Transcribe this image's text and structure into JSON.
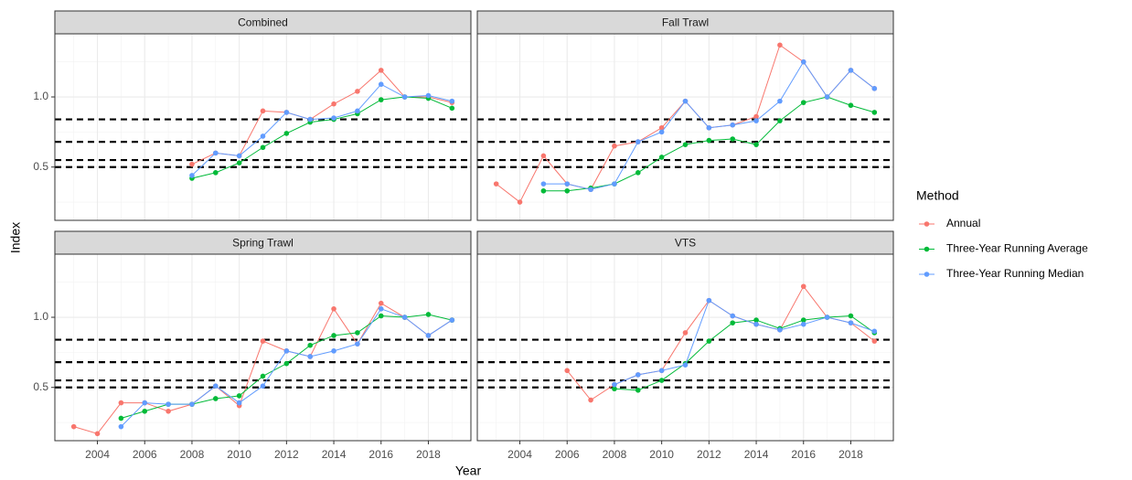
{
  "chart_data": {
    "type": "line",
    "x_label": "Year",
    "y_label": "Index",
    "legend_title": "Method",
    "series": [
      {
        "name": "Annual",
        "color": "#f8766d"
      },
      {
        "name": "Three-Year Running Average",
        "color": "#00ba38"
      },
      {
        "name": "Three-Year Running Median",
        "color": "#619cff"
      }
    ],
    "x": [
      2003,
      2004,
      2005,
      2006,
      2007,
      2008,
      2009,
      2010,
      2011,
      2012,
      2013,
      2014,
      2015,
      2016,
      2017,
      2018,
      2019
    ],
    "xlim": [
      2002.2,
      2019.8
    ],
    "ylim": [
      0.12,
      1.45
    ],
    "xticks": [
      2004,
      2006,
      2008,
      2010,
      2012,
      2014,
      2016,
      2018
    ],
    "yticks": [
      0.5,
      {
        "value": 1,
        "label": "1.0"
      }
    ],
    "reference_lines": [
      0.84,
      0.68,
      0.55,
      0.5
    ],
    "grid": true,
    "panels": [
      {
        "title": "Combined",
        "series": [
          {
            "values": [
              null,
              null,
              null,
              null,
              null,
              0.52,
              0.6,
              0.58,
              0.9,
              0.89,
              0.84,
              0.95,
              1.04,
              1.19,
              1.0,
              1.0,
              0.96
            ]
          },
          {
            "values": [
              null,
              null,
              null,
              null,
              null,
              0.42,
              0.46,
              0.53,
              0.64,
              0.74,
              0.82,
              0.84,
              0.88,
              0.98,
              1.0,
              0.99,
              0.92
            ]
          },
          {
            "values": [
              null,
              null,
              null,
              null,
              null,
              0.44,
              0.6,
              0.58,
              0.72,
              0.89,
              0.84,
              0.85,
              0.9,
              1.09,
              1.0,
              1.01,
              0.97
            ]
          }
        ]
      },
      {
        "title": "Fall Trawl",
        "series": [
          {
            "values": [
              0.38,
              0.25,
              0.58,
              0.38,
              0.34,
              0.65,
              0.68,
              0.78,
              0.97,
              0.78,
              0.8,
              0.86,
              1.37,
              1.25,
              1.0,
              1.19,
              1.06
            ]
          },
          {
            "values": [
              null,
              null,
              0.33,
              0.33,
              0.35,
              0.38,
              0.46,
              0.57,
              0.66,
              0.69,
              0.7,
              0.66,
              0.83,
              0.96,
              1.0,
              0.94,
              0.89
            ]
          },
          {
            "values": [
              null,
              null,
              0.38,
              0.38,
              0.34,
              0.38,
              0.68,
              0.75,
              0.97,
              0.78,
              0.8,
              0.83,
              0.97,
              1.25,
              1.0,
              1.19,
              1.06
            ]
          }
        ]
      },
      {
        "title": "Spring Trawl",
        "series": [
          {
            "values": [
              0.22,
              0.17,
              0.39,
              0.39,
              0.33,
              0.38,
              0.51,
              0.37,
              0.83,
              0.76,
              0.72,
              1.06,
              0.81,
              1.1,
              1.0,
              0.87,
              0.98
            ]
          },
          {
            "values": [
              null,
              null,
              0.28,
              0.33,
              0.38,
              0.38,
              0.42,
              0.44,
              0.58,
              0.67,
              0.8,
              0.87,
              0.89,
              1.01,
              1.0,
              1.02,
              0.98
            ]
          },
          {
            "values": [
              null,
              null,
              0.22,
              0.39,
              0.38,
              0.38,
              0.51,
              0.39,
              0.51,
              0.76,
              0.72,
              0.76,
              0.81,
              1.06,
              1.0,
              0.87,
              0.98
            ]
          }
        ]
      },
      {
        "title": "VTS",
        "series": [
          {
            "values": [
              null,
              null,
              null,
              0.62,
              0.41,
              0.52,
              0.59,
              0.62,
              0.89,
              1.12,
              1.01,
              0.95,
              0.91,
              1.22,
              1.0,
              0.96,
              0.83
            ]
          },
          {
            "values": [
              null,
              null,
              null,
              null,
              null,
              0.49,
              0.48,
              0.55,
              0.67,
              0.83,
              0.96,
              0.98,
              0.92,
              0.98,
              1.0,
              1.01,
              0.89
            ]
          },
          {
            "values": [
              null,
              null,
              null,
              null,
              null,
              0.52,
              0.59,
              0.62,
              0.66,
              1.12,
              1.01,
              0.95,
              0.91,
              0.95,
              1.0,
              0.96,
              0.9
            ]
          }
        ]
      }
    ]
  }
}
